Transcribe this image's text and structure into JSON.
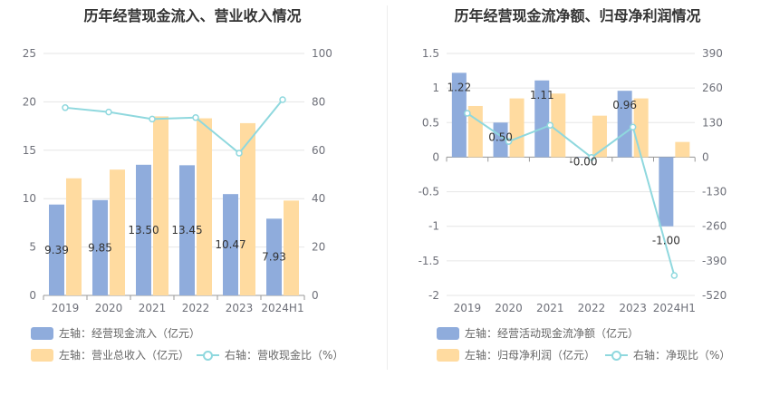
{
  "colors": {
    "bar1": "#8facdc",
    "bar2": "#ffdba0",
    "line": "#8fd8de",
    "grid": "#e6e6e6",
    "axis": "#999999",
    "text": "#6e7079"
  },
  "chart_data": [
    {
      "type": "bar",
      "title": "历年经营现金流入、营业收入情况",
      "categories": [
        "2019",
        "2020",
        "2021",
        "2022",
        "2023",
        "2024H1"
      ],
      "left_axis": {
        "ylim": [
          0,
          25
        ],
        "ticks": [
          "0",
          "5",
          "10",
          "15",
          "20",
          "25"
        ]
      },
      "right_axis": {
        "ylim": [
          0,
          100
        ],
        "ticks": [
          "0",
          "20",
          "40",
          "60",
          "80",
          "100"
        ]
      },
      "series": [
        {
          "name": "左轴：经营现金流入（亿元）",
          "type": "bar",
          "axis": "left",
          "values": [
            9.39,
            9.85,
            13.5,
            13.45,
            10.47,
            7.93
          ],
          "labels": [
            "9.39",
            "9.85",
            "13.50",
            "13.45",
            "10.47",
            "7.93"
          ]
        },
        {
          "name": "左轴：营业总收入（亿元）",
          "type": "bar",
          "axis": "left",
          "values": [
            12.1,
            13.0,
            18.5,
            18.3,
            17.8,
            9.8
          ]
        },
        {
          "name": "右轴：营收现金比（%）",
          "type": "line",
          "axis": "right",
          "values": [
            77.6,
            75.8,
            72.9,
            73.5,
            58.8,
            80.9
          ]
        }
      ]
    },
    {
      "type": "bar",
      "title": "历年经营现金流净额、归母净利润情况",
      "categories": [
        "2019",
        "2020",
        "2021",
        "2022",
        "2023",
        "2024H1"
      ],
      "left_axis": {
        "ylim": [
          -2,
          1.5
        ],
        "ticks": [
          "-2",
          "-1.5",
          "-1",
          "-0.5",
          "0",
          "0.5",
          "1",
          "1.5"
        ]
      },
      "right_axis": {
        "ylim": [
          -520,
          390
        ],
        "ticks": [
          "-520",
          "-390",
          "-260",
          "-130",
          "0",
          "130",
          "260",
          "390"
        ]
      },
      "series": [
        {
          "name": "左轴：经营活动现金流净额（亿元）",
          "type": "bar",
          "axis": "left",
          "values": [
            1.22,
            0.5,
            1.11,
            -0.0,
            0.96,
            -1.0
          ],
          "labels": [
            "1.22",
            "0.50",
            "1.11",
            "-0.00",
            "0.96",
            "-1.00"
          ]
        },
        {
          "name": "左轴：归母净利润（亿元）",
          "type": "bar",
          "axis": "left",
          "values": [
            0.74,
            0.85,
            0.92,
            0.6,
            0.85,
            0.22
          ]
        },
        {
          "name": "右轴：净现比（%）",
          "type": "line",
          "axis": "right",
          "values": [
            165,
            59,
            120,
            -1,
            113,
            -445
          ]
        }
      ]
    }
  ]
}
